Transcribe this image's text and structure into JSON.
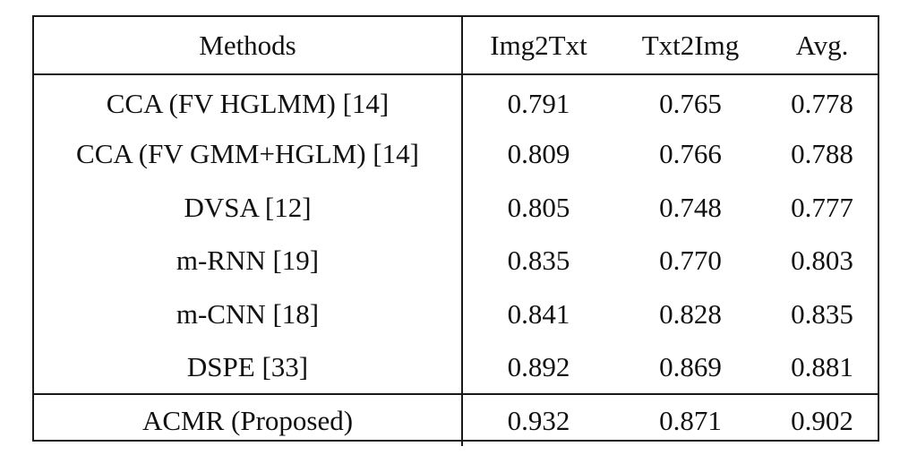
{
  "table": {
    "headers": {
      "methods": "Methods",
      "img2txt": "Img2Txt",
      "txt2img": "Txt2Img",
      "avg": "Avg."
    },
    "rows": [
      {
        "method": "CCA (FV HGLMM) [14]",
        "img2txt": "0.791",
        "txt2img": "0.765",
        "avg": "0.778"
      },
      {
        "method": "CCA (FV GMM+HGLM) [14]",
        "img2txt": "0.809",
        "txt2img": "0.766",
        "avg": "0.788"
      },
      {
        "method": "DVSA [12]",
        "img2txt": "0.805",
        "txt2img": "0.748",
        "avg": "0.777"
      },
      {
        "method": "m-RNN [19]",
        "img2txt": "0.835",
        "txt2img": "0.770",
        "avg": "0.803"
      },
      {
        "method": "m-CNN [18]",
        "img2txt": "0.841",
        "txt2img": "0.828",
        "avg": "0.835"
      },
      {
        "method": "DSPE [33]",
        "img2txt": "0.892",
        "txt2img": "0.869",
        "avg": "0.881"
      }
    ],
    "proposed": {
      "method": "ACMR (Proposed)",
      "img2txt": "0.932",
      "txt2img": "0.871",
      "avg": "0.902"
    }
  }
}
